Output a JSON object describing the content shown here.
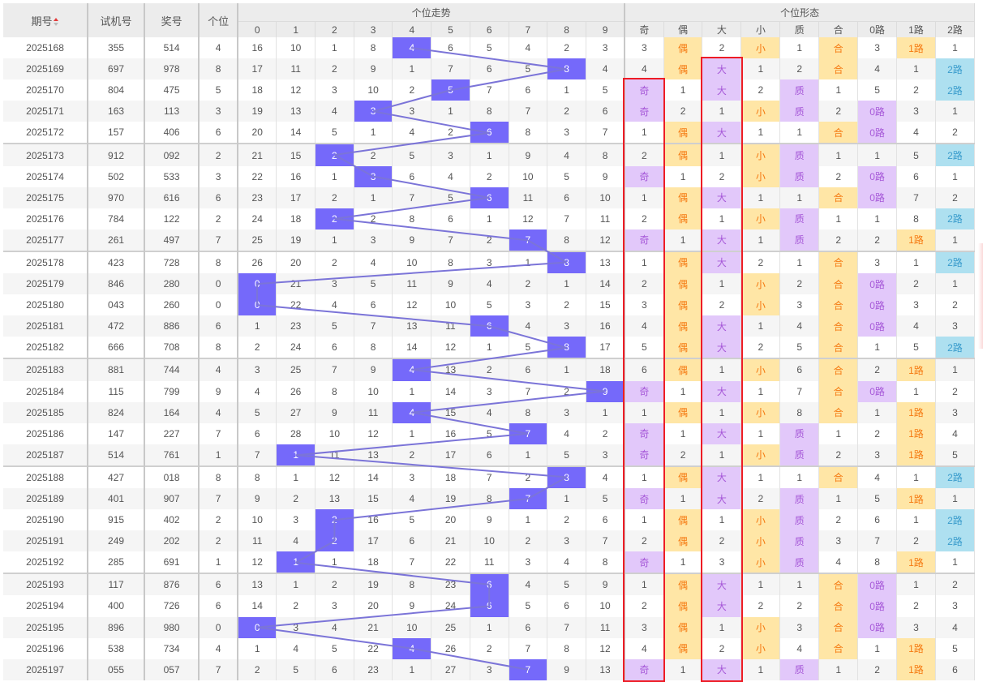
{
  "header": {
    "issue": "期号",
    "trial": "试机号",
    "prize": "奖号",
    "unit": "个位",
    "trend_group": "个位走势",
    "form_group": "个位形态",
    "trend_cols": [
      "0",
      "1",
      "2",
      "3",
      "4",
      "5",
      "6",
      "7",
      "8",
      "9"
    ],
    "form_cols": [
      "奇",
      "偶",
      "大",
      "小",
      "质",
      "合",
      "0路",
      "1路",
      "2路"
    ]
  },
  "colors": {
    "hit": "#7569fa",
    "line": "#7b74d8",
    "purple_bg": "#e2c8fa",
    "orange_bg": "#ffe6a6",
    "blue_bg": "#aee0f0",
    "highlight_box": "#ee1c25"
  },
  "rows": [
    {
      "issue": "2025168",
      "trial": "355",
      "prize": "514",
      "unit": "4",
      "trend": [
        "16",
        "10",
        "1",
        "8",
        "4",
        "6",
        "5",
        "4",
        "2",
        "3"
      ],
      "form": [
        "3",
        "偶",
        "2",
        "小",
        "1",
        "合",
        "3",
        "1路",
        "1"
      ]
    },
    {
      "issue": "2025169",
      "trial": "697",
      "prize": "978",
      "unit": "8",
      "trend": [
        "17",
        "11",
        "2",
        "9",
        "1",
        "7",
        "6",
        "5",
        "8",
        "4"
      ],
      "form": [
        "4",
        "偶",
        "大",
        "1",
        "2",
        "合",
        "4",
        "1",
        "2路"
      ]
    },
    {
      "issue": "2025170",
      "trial": "804",
      "prize": "475",
      "unit": "5",
      "trend": [
        "18",
        "12",
        "3",
        "10",
        "2",
        "5",
        "7",
        "6",
        "1",
        "5"
      ],
      "form": [
        "奇",
        "1",
        "大",
        "2",
        "质",
        "1",
        "5",
        "2",
        "2路"
      ]
    },
    {
      "issue": "2025171",
      "trial": "163",
      "prize": "113",
      "unit": "3",
      "trend": [
        "19",
        "13",
        "4",
        "3",
        "3",
        "1",
        "8",
        "7",
        "2",
        "6"
      ],
      "form": [
        "奇",
        "2",
        "1",
        "小",
        "质",
        "2",
        "0路",
        "3",
        "1"
      ]
    },
    {
      "issue": "2025172",
      "trial": "157",
      "prize": "406",
      "unit": "6",
      "trend": [
        "20",
        "14",
        "5",
        "1",
        "4",
        "2",
        "6",
        "8",
        "3",
        "7"
      ],
      "form": [
        "1",
        "偶",
        "大",
        "1",
        "1",
        "合",
        "0路",
        "4",
        "2"
      ]
    },
    {
      "issue": "2025173",
      "trial": "912",
      "prize": "092",
      "unit": "2",
      "trend": [
        "21",
        "15",
        "2",
        "2",
        "5",
        "3",
        "1",
        "9",
        "4",
        "8"
      ],
      "form": [
        "2",
        "偶",
        "1",
        "小",
        "质",
        "1",
        "1",
        "5",
        "2路"
      ]
    },
    {
      "issue": "2025174",
      "trial": "502",
      "prize": "533",
      "unit": "3",
      "trend": [
        "22",
        "16",
        "1",
        "3",
        "6",
        "4",
        "2",
        "10",
        "5",
        "9"
      ],
      "form": [
        "奇",
        "1",
        "2",
        "小",
        "质",
        "2",
        "0路",
        "6",
        "1"
      ]
    },
    {
      "issue": "2025175",
      "trial": "970",
      "prize": "616",
      "unit": "6",
      "trend": [
        "23",
        "17",
        "2",
        "1",
        "7",
        "5",
        "6",
        "11",
        "6",
        "10"
      ],
      "form": [
        "1",
        "偶",
        "大",
        "1",
        "1",
        "合",
        "0路",
        "7",
        "2"
      ]
    },
    {
      "issue": "2025176",
      "trial": "784",
      "prize": "122",
      "unit": "2",
      "trend": [
        "24",
        "18",
        "2",
        "2",
        "8",
        "6",
        "1",
        "12",
        "7",
        "11"
      ],
      "form": [
        "2",
        "偶",
        "1",
        "小",
        "质",
        "1",
        "1",
        "8",
        "2路"
      ]
    },
    {
      "issue": "2025177",
      "trial": "261",
      "prize": "497",
      "unit": "7",
      "trend": [
        "25",
        "19",
        "1",
        "3",
        "9",
        "7",
        "2",
        "7",
        "8",
        "12"
      ],
      "form": [
        "奇",
        "1",
        "大",
        "1",
        "质",
        "2",
        "2",
        "1路",
        "1"
      ]
    },
    {
      "issue": "2025178",
      "trial": "423",
      "prize": "728",
      "unit": "8",
      "trend": [
        "26",
        "20",
        "2",
        "4",
        "10",
        "8",
        "3",
        "1",
        "8",
        "13"
      ],
      "form": [
        "1",
        "偶",
        "大",
        "2",
        "1",
        "合",
        "3",
        "1",
        "2路"
      ]
    },
    {
      "issue": "2025179",
      "trial": "846",
      "prize": "280",
      "unit": "0",
      "trend": [
        "0",
        "21",
        "3",
        "5",
        "11",
        "9",
        "4",
        "2",
        "1",
        "14"
      ],
      "form": [
        "2",
        "偶",
        "1",
        "小",
        "2",
        "合",
        "0路",
        "2",
        "1"
      ]
    },
    {
      "issue": "2025180",
      "trial": "043",
      "prize": "260",
      "unit": "0",
      "trend": [
        "0",
        "22",
        "4",
        "6",
        "12",
        "10",
        "5",
        "3",
        "2",
        "15"
      ],
      "form": [
        "3",
        "偶",
        "2",
        "小",
        "3",
        "合",
        "0路",
        "3",
        "2"
      ]
    },
    {
      "issue": "2025181",
      "trial": "472",
      "prize": "886",
      "unit": "6",
      "trend": [
        "1",
        "23",
        "5",
        "7",
        "13",
        "11",
        "6",
        "4",
        "3",
        "16"
      ],
      "form": [
        "4",
        "偶",
        "大",
        "1",
        "4",
        "合",
        "0路",
        "4",
        "3"
      ]
    },
    {
      "issue": "2025182",
      "trial": "666",
      "prize": "708",
      "unit": "8",
      "trend": [
        "2",
        "24",
        "6",
        "8",
        "14",
        "12",
        "1",
        "5",
        "8",
        "17"
      ],
      "form": [
        "5",
        "偶",
        "大",
        "2",
        "5",
        "合",
        "1",
        "5",
        "2路"
      ]
    },
    {
      "issue": "2025183",
      "trial": "881",
      "prize": "744",
      "unit": "4",
      "trend": [
        "3",
        "25",
        "7",
        "9",
        "4",
        "13",
        "2",
        "6",
        "1",
        "18"
      ],
      "form": [
        "6",
        "偶",
        "1",
        "小",
        "6",
        "合",
        "2",
        "1路",
        "1"
      ]
    },
    {
      "issue": "2025184",
      "trial": "115",
      "prize": "799",
      "unit": "9",
      "trend": [
        "4",
        "26",
        "8",
        "10",
        "1",
        "14",
        "3",
        "7",
        "2",
        "9"
      ],
      "form": [
        "奇",
        "1",
        "大",
        "1",
        "7",
        "合",
        "0路",
        "1",
        "2"
      ]
    },
    {
      "issue": "2025185",
      "trial": "824",
      "prize": "164",
      "unit": "4",
      "trend": [
        "5",
        "27",
        "9",
        "11",
        "4",
        "15",
        "4",
        "8",
        "3",
        "1"
      ],
      "form": [
        "1",
        "偶",
        "1",
        "小",
        "8",
        "合",
        "1",
        "1路",
        "3"
      ]
    },
    {
      "issue": "2025186",
      "trial": "147",
      "prize": "227",
      "unit": "7",
      "trend": [
        "6",
        "28",
        "10",
        "12",
        "1",
        "16",
        "5",
        "7",
        "4",
        "2"
      ],
      "form": [
        "奇",
        "1",
        "大",
        "1",
        "质",
        "1",
        "2",
        "1路",
        "4"
      ]
    },
    {
      "issue": "2025187",
      "trial": "514",
      "prize": "761",
      "unit": "1",
      "trend": [
        "7",
        "1",
        "11",
        "13",
        "2",
        "17",
        "6",
        "1",
        "5",
        "3"
      ],
      "form": [
        "奇",
        "2",
        "1",
        "小",
        "质",
        "2",
        "3",
        "1路",
        "5"
      ]
    },
    {
      "issue": "2025188",
      "trial": "427",
      "prize": "018",
      "unit": "8",
      "trend": [
        "8",
        "1",
        "12",
        "14",
        "3",
        "18",
        "7",
        "2",
        "8",
        "4"
      ],
      "form": [
        "1",
        "偶",
        "大",
        "1",
        "1",
        "合",
        "4",
        "1",
        "2路"
      ]
    },
    {
      "issue": "2025189",
      "trial": "401",
      "prize": "907",
      "unit": "7",
      "trend": [
        "9",
        "2",
        "13",
        "15",
        "4",
        "19",
        "8",
        "7",
        "1",
        "5"
      ],
      "form": [
        "奇",
        "1",
        "大",
        "2",
        "质",
        "1",
        "5",
        "1路",
        "1"
      ]
    },
    {
      "issue": "2025190",
      "trial": "915",
      "prize": "402",
      "unit": "2",
      "trend": [
        "10",
        "3",
        "2",
        "16",
        "5",
        "20",
        "9",
        "1",
        "2",
        "6"
      ],
      "form": [
        "1",
        "偶",
        "1",
        "小",
        "质",
        "2",
        "6",
        "1",
        "2路"
      ]
    },
    {
      "issue": "2025191",
      "trial": "249",
      "prize": "202",
      "unit": "2",
      "trend": [
        "11",
        "4",
        "2",
        "17",
        "6",
        "21",
        "10",
        "2",
        "3",
        "7"
      ],
      "form": [
        "2",
        "偶",
        "2",
        "小",
        "质",
        "3",
        "7",
        "2",
        "2路"
      ]
    },
    {
      "issue": "2025192",
      "trial": "285",
      "prize": "691",
      "unit": "1",
      "trend": [
        "12",
        "1",
        "1",
        "18",
        "7",
        "22",
        "11",
        "3",
        "4",
        "8"
      ],
      "form": [
        "奇",
        "1",
        "3",
        "小",
        "质",
        "4",
        "8",
        "1路",
        "1"
      ]
    },
    {
      "issue": "2025193",
      "trial": "117",
      "prize": "876",
      "unit": "6",
      "trend": [
        "13",
        "1",
        "2",
        "19",
        "8",
        "23",
        "6",
        "4",
        "5",
        "9"
      ],
      "form": [
        "1",
        "偶",
        "大",
        "1",
        "1",
        "合",
        "0路",
        "1",
        "2"
      ]
    },
    {
      "issue": "2025194",
      "trial": "400",
      "prize": "726",
      "unit": "6",
      "trend": [
        "14",
        "2",
        "3",
        "20",
        "9",
        "24",
        "6",
        "5",
        "6",
        "10"
      ],
      "form": [
        "2",
        "偶",
        "大",
        "2",
        "2",
        "合",
        "0路",
        "2",
        "3"
      ]
    },
    {
      "issue": "2025195",
      "trial": "896",
      "prize": "980",
      "unit": "0",
      "trend": [
        "0",
        "3",
        "4",
        "21",
        "10",
        "25",
        "1",
        "6",
        "7",
        "11"
      ],
      "form": [
        "3",
        "偶",
        "1",
        "小",
        "3",
        "合",
        "0路",
        "3",
        "4"
      ]
    },
    {
      "issue": "2025196",
      "trial": "538",
      "prize": "734",
      "unit": "4",
      "trend": [
        "1",
        "4",
        "5",
        "22",
        "4",
        "26",
        "2",
        "7",
        "8",
        "12"
      ],
      "form": [
        "4",
        "偶",
        "2",
        "小",
        "4",
        "合",
        "1",
        "1路",
        "5"
      ]
    },
    {
      "issue": "2025197",
      "trial": "055",
      "prize": "057",
      "unit": "7",
      "trend": [
        "2",
        "5",
        "6",
        "23",
        "1",
        "27",
        "3",
        "7",
        "9",
        "13"
      ],
      "form": [
        "奇",
        "1",
        "大",
        "1",
        "质",
        "1",
        "2",
        "1路",
        "6"
      ]
    }
  ]
}
